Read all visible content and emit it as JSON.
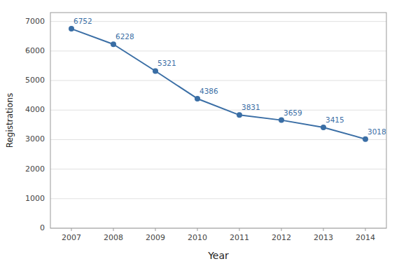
{
  "chart_data": {
    "type": "line",
    "x": [
      2007,
      2008,
      2009,
      2010,
      2011,
      2012,
      2013,
      2014
    ],
    "values": [
      6752,
      6228,
      5321,
      4386,
      3831,
      3659,
      3415,
      3018
    ],
    "color": "#3a6ea5",
    "marker": "circle",
    "xlabel": "Year",
    "ylabel": "Registrations",
    "xlim": [
      2006.5,
      2014.5
    ],
    "xticks": [
      2007,
      2008,
      2009,
      2010,
      2011,
      2012,
      2013,
      2014
    ],
    "ylim": [
      0,
      7300
    ],
    "yticks": [
      0,
      1000,
      2000,
      3000,
      4000,
      5000,
      6000,
      7000
    ],
    "grid": true,
    "data_labels": true
  }
}
